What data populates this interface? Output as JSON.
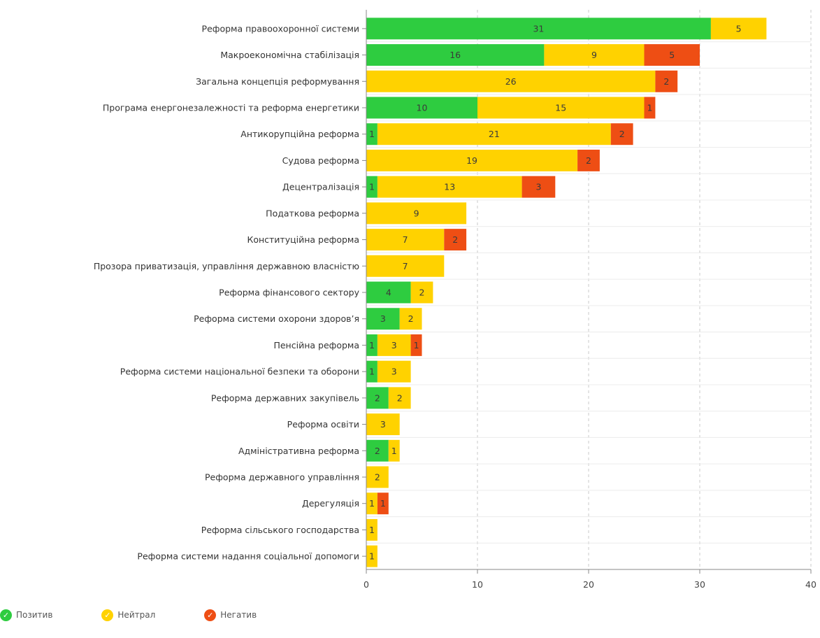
{
  "chart_data": {
    "type": "bar",
    "orientation": "horizontal",
    "stacked": true,
    "title": "",
    "xlabel": "",
    "ylabel": "",
    "xlim": [
      0,
      40
    ],
    "xticks": [
      0,
      10,
      20,
      30,
      40
    ],
    "grid": "vertical-dashed",
    "legend_position": "bottom-left",
    "categories": [
      "Реформа правоохоронної системи",
      "Макроекономічна стабілізація",
      "Загальна концепція реформування",
      "Програма енергонезалежності та реформа енергетики",
      "Антикорупційна реформа",
      "Судова реформа",
      "Децентралізація",
      "Податкова реформа",
      "Конституційна реформа",
      "Прозора приватизація, управління державною власністю",
      "Реформа фінансового сектору",
      "Реформа системи охорони здоров’я",
      "Пенсійна реформа",
      "Реформа системи національної безпеки та оборони",
      "Реформа державних закупівель",
      "Реформа освіти",
      "Адміністративна реформа",
      "Реформа державного управління",
      "Дерегуляція",
      "Реформа сільського господарства",
      "Реформа системи надання соціальної допомоги"
    ],
    "series": [
      {
        "name": "Позитив",
        "color": "#2ecc40",
        "values": [
          31,
          16,
          0,
          10,
          1,
          0,
          1,
          0,
          0,
          0,
          4,
          3,
          1,
          1,
          2,
          0,
          2,
          0,
          0,
          0,
          0
        ]
      },
      {
        "name": "Нейтрал",
        "color": "#ffd200",
        "values": [
          5,
          9,
          26,
          15,
          21,
          19,
          13,
          9,
          7,
          7,
          2,
          2,
          3,
          3,
          2,
          3,
          1,
          2,
          1,
          1,
          1
        ]
      },
      {
        "name": "Негатив",
        "color": "#ee4e14",
        "values": [
          0,
          5,
          2,
          1,
          2,
          2,
          3,
          0,
          2,
          0,
          0,
          0,
          1,
          0,
          0,
          0,
          0,
          0,
          1,
          0,
          0
        ]
      }
    ]
  }
}
